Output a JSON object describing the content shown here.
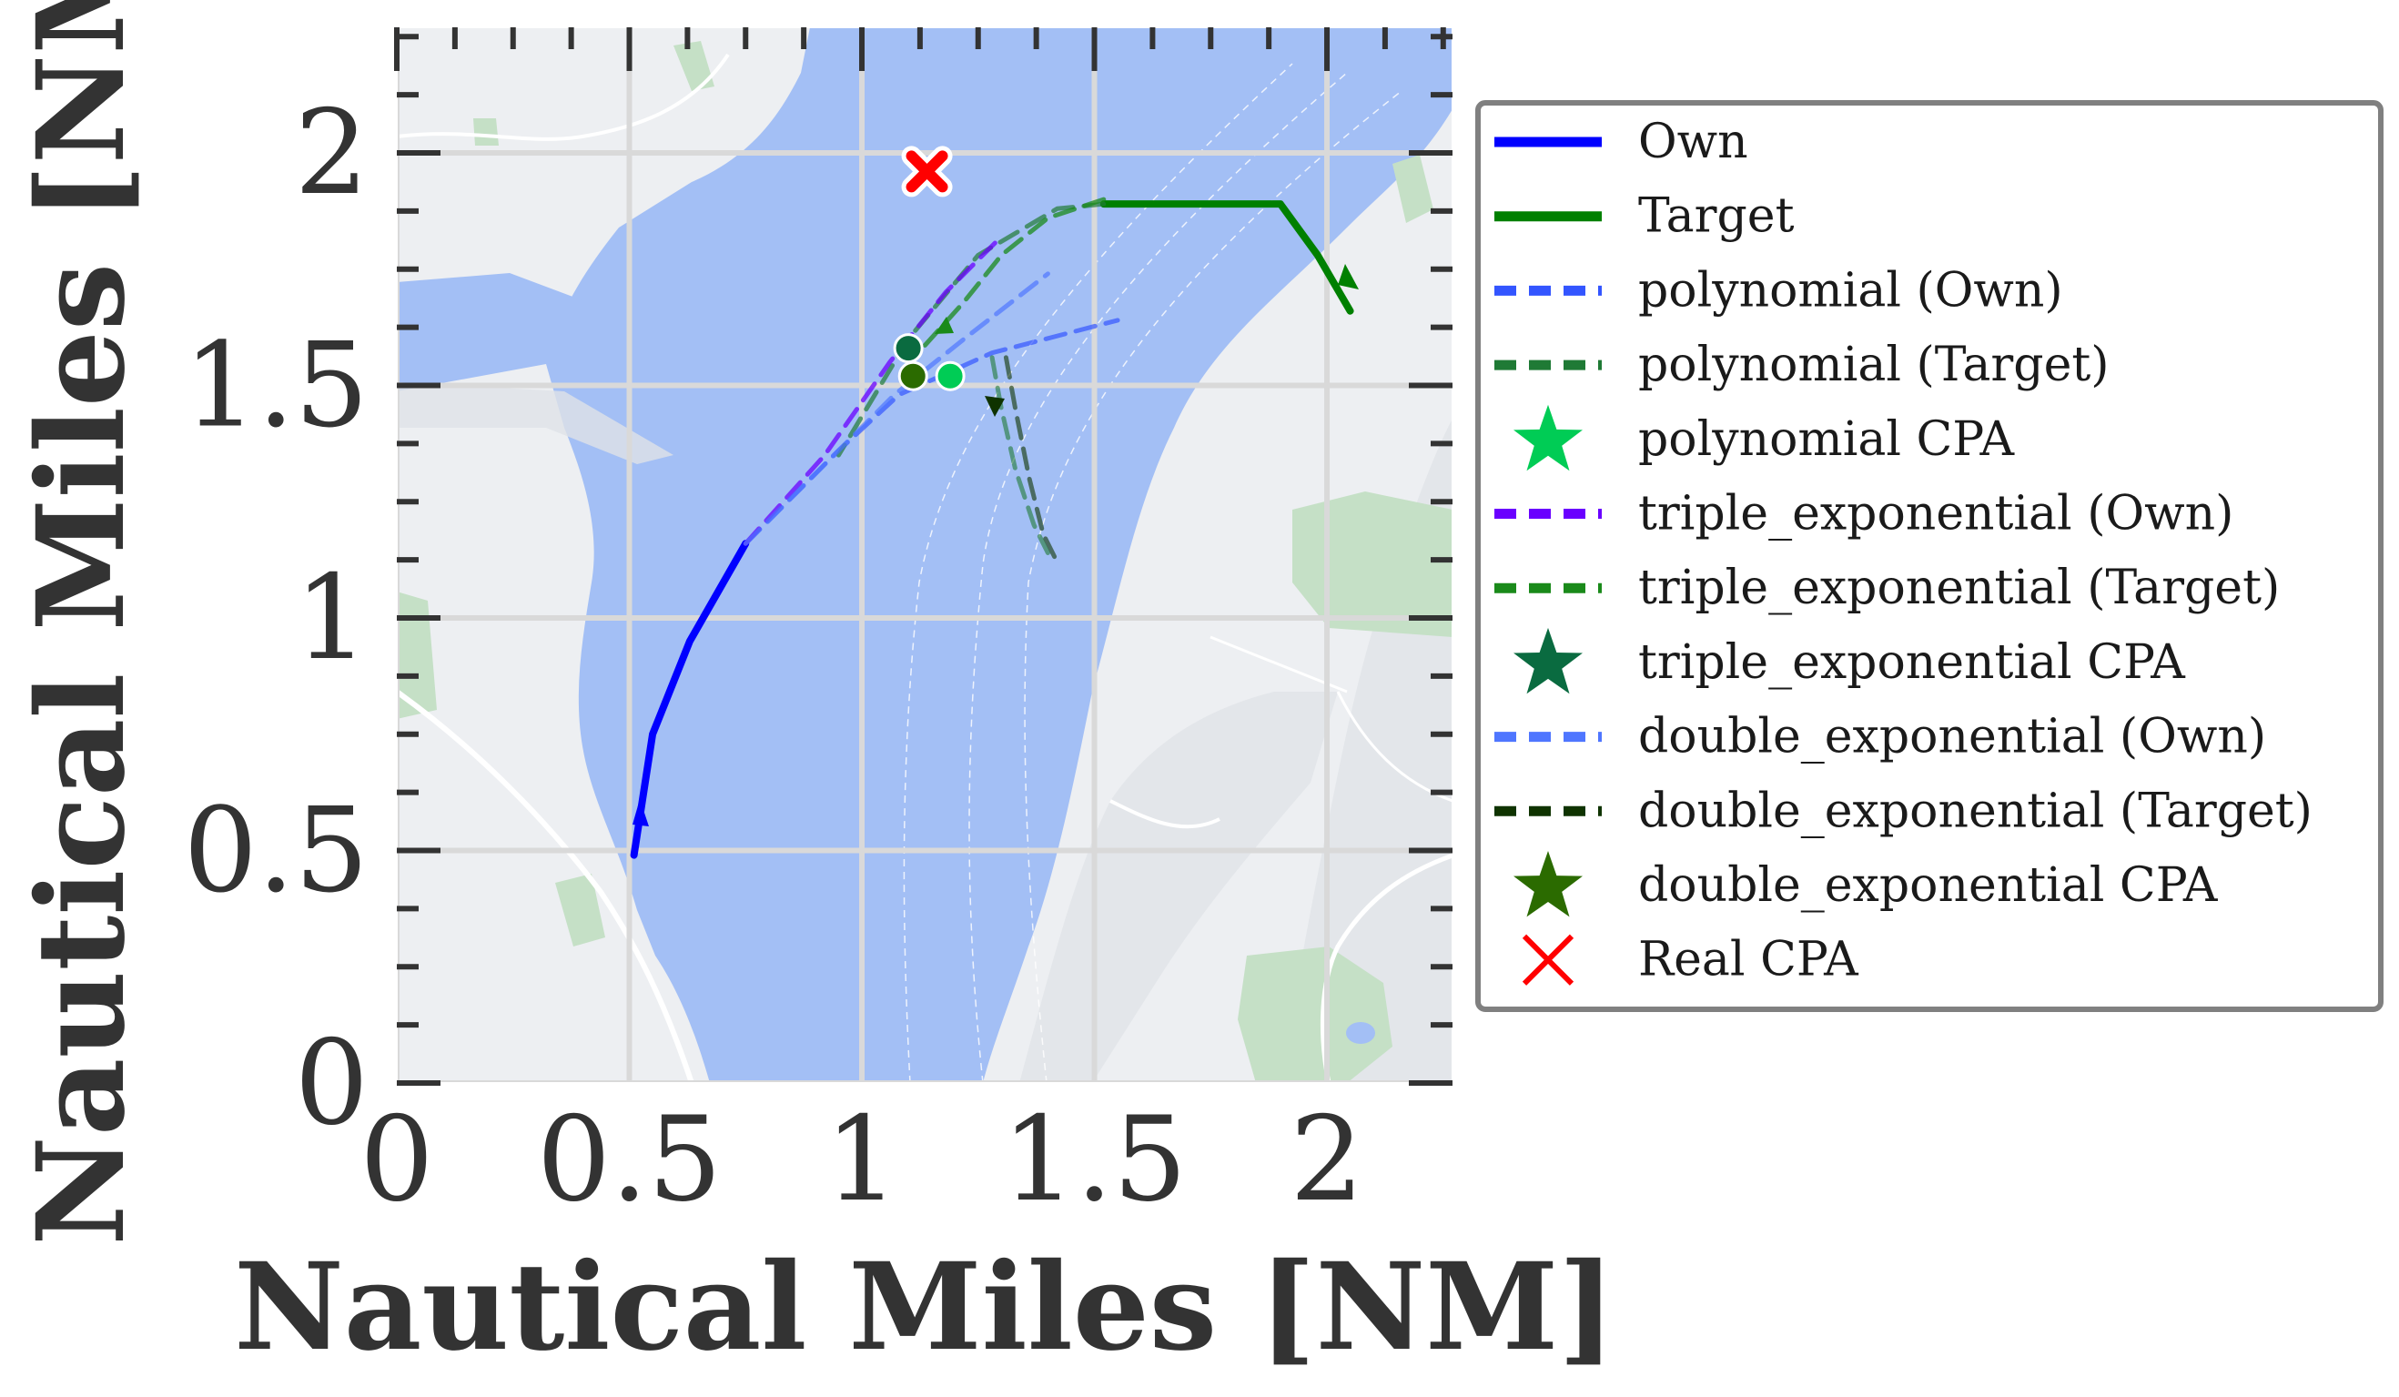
{
  "chart_data": {
    "type": "line",
    "xlabel": "Nautical Miles [NM]",
    "ylabel": "Nautical Miles [NM]",
    "xlim": [
      0,
      2.27
    ],
    "ylim": [
      0,
      2.27
    ],
    "xticks": [
      0,
      0.5,
      1,
      1.5,
      2
    ],
    "yticks": [
      0,
      0.5,
      1,
      1.5,
      2
    ],
    "xtick_labels": [
      "0",
      "0.5",
      "1",
      "1.5",
      "2"
    ],
    "ytick_labels": [
      "0",
      "0.5",
      "1",
      "1.5",
      "2"
    ],
    "grid": true,
    "background": "nautical map (water, land, parks)",
    "legend_position": "right, outside plot",
    "legend": [
      {
        "label": "Own",
        "style": "solid-line",
        "color": "#0000ff"
      },
      {
        "label": "Target",
        "style": "solid-line",
        "color": "#008000"
      },
      {
        "label": "polynomial (Own)",
        "style": "dashed-line",
        "color": "#3355ff"
      },
      {
        "label": "polynomial (Target)",
        "style": "dashed-line",
        "color": "#1f7a35"
      },
      {
        "label": "polynomial CPA",
        "style": "star",
        "color": "#00cc55"
      },
      {
        "label": "triple_exponential (Own)",
        "style": "dashed-line",
        "color": "#6a00ff"
      },
      {
        "label": "triple_exponential (Target)",
        "style": "dashed-line",
        "color": "#1a8a1a"
      },
      {
        "label": "triple_exponential CPA",
        "style": "star",
        "color": "#0a6b40"
      },
      {
        "label": "double_exponential (Own)",
        "style": "dashed-line",
        "color": "#4f76ff"
      },
      {
        "label": "double_exponential (Target)",
        "style": "dashed-line",
        "color": "#0f3300"
      },
      {
        "label": "double_exponential CPA",
        "style": "star",
        "color": "#2b6b00"
      },
      {
        "label": "Real CPA",
        "style": "x",
        "color": "#ff0000"
      }
    ],
    "series": [
      {
        "name": "Own",
        "style": "solid",
        "color": "#0000ff",
        "width": 8,
        "alpha": 1,
        "x": [
          0.51,
          0.55,
          0.63,
          0.75
        ],
        "y": [
          0.49,
          0.75,
          0.95,
          1.16
        ]
      },
      {
        "name": "Target",
        "style": "solid",
        "color": "#008000",
        "width": 8,
        "alpha": 1,
        "x": [
          2.05,
          1.98,
          1.9,
          1.52
        ],
        "y": [
          1.66,
          1.78,
          1.89,
          1.89
        ]
      },
      {
        "name": "polynomial (Own)",
        "style": "dashed",
        "color": "#3355ff",
        "width": 5,
        "alpha": 0.7,
        "x": [
          0.75,
          0.95,
          1.08,
          1.28,
          1.55
        ],
        "y": [
          1.16,
          1.36,
          1.48,
          1.57,
          1.64
        ]
      },
      {
        "name": "polynomial (Target)",
        "style": "dashed",
        "color": "#1f7a35",
        "width": 5,
        "alpha": 0.7,
        "x": [
          1.52,
          1.42,
          1.25,
          1.1,
          0.95
        ],
        "y": [
          1.89,
          1.88,
          1.78,
          1.6,
          1.35
        ]
      },
      {
        "name": "triple_exponential (Own)",
        "style": "dashed",
        "color": "#6a00ff",
        "width": 5,
        "alpha": 0.75,
        "x": [
          0.75,
          0.92,
          1.06,
          1.18,
          1.3
        ],
        "y": [
          1.16,
          1.35,
          1.55,
          1.7,
          1.82
        ]
      },
      {
        "name": "triple_exponential (Target)",
        "style": "dashed",
        "color": "#1a8a1a",
        "width": 5,
        "alpha": 0.75,
        "x": [
          1.52,
          1.4,
          1.3,
          1.22,
          1.13
        ],
        "y": [
          1.9,
          1.86,
          1.78,
          1.68,
          1.58
        ]
      },
      {
        "name": "double_exponential (Own)",
        "style": "dashed",
        "color": "#4f76ff",
        "width": 5,
        "alpha": 0.7,
        "x": [
          0.75,
          0.93,
          1.07,
          1.22,
          1.4
        ],
        "y": [
          1.16,
          1.34,
          1.48,
          1.6,
          1.74
        ]
      },
      {
        "name": "double_exponential (Target)",
        "style": "dashed",
        "color": "#0f3300",
        "width": 5,
        "alpha": 0.6,
        "x": [
          1.31,
          1.33,
          1.36,
          1.39,
          1.42
        ],
        "y": [
          1.56,
          1.45,
          1.3,
          1.18,
          1.12
        ]
      },
      {
        "name": "",
        "style": "dashed",
        "color": "#1f7a35",
        "width": 5,
        "alpha": 0.6,
        "x": [
          1.28,
          1.3,
          1.33,
          1.37,
          1.4
        ],
        "y": [
          1.56,
          1.45,
          1.32,
          1.2,
          1.14
        ]
      }
    ],
    "markers": [
      {
        "name": "polynomial CPA",
        "shape": "circle",
        "color": "#00cc55",
        "x": 1.19,
        "y": 1.52
      },
      {
        "name": "triple_exponential CPA",
        "shape": "circle",
        "color": "#0a6b40",
        "x": 1.1,
        "y": 1.58
      },
      {
        "name": "double_exponential CPA",
        "shape": "circle",
        "color": "#2b6b00",
        "x": 1.11,
        "y": 1.52
      },
      {
        "name": "Real CPA",
        "shape": "x",
        "color": "#ff0000",
        "x": 1.14,
        "y": 1.96
      }
    ]
  }
}
